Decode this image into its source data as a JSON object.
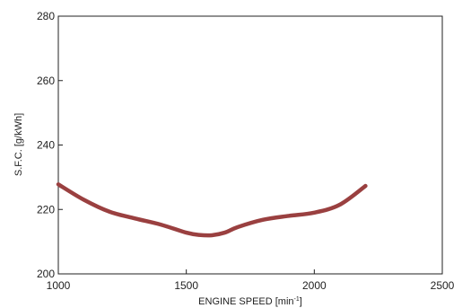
{
  "chart_data": {
    "type": "line",
    "xlabel": {
      "prefix": "ENGINE SPEED [min",
      "superscript": "-1",
      "suffix": "]"
    },
    "ylabel": "S.F.C. [g/kWh]",
    "xlim": [
      1000,
      2500
    ],
    "ylim": [
      200,
      280
    ],
    "x_ticks": [
      1000,
      1500,
      2000,
      2500
    ],
    "y_ticks": [
      200,
      220,
      240,
      260,
      280
    ],
    "grid": false,
    "legend": "none",
    "series": [
      {
        "color": "#9a4040",
        "points": [
          [
            1000,
            227.8
          ],
          [
            1100,
            223.0
          ],
          [
            1200,
            219.3
          ],
          [
            1300,
            217.2
          ],
          [
            1400,
            215.3
          ],
          [
            1500,
            212.8
          ],
          [
            1550,
            212.1
          ],
          [
            1600,
            212.0
          ],
          [
            1650,
            212.8
          ],
          [
            1700,
            214.5
          ],
          [
            1800,
            216.8
          ],
          [
            1900,
            218.0
          ],
          [
            2000,
            219.0
          ],
          [
            2100,
            221.5
          ],
          [
            2200,
            227.3
          ]
        ]
      }
    ]
  }
}
